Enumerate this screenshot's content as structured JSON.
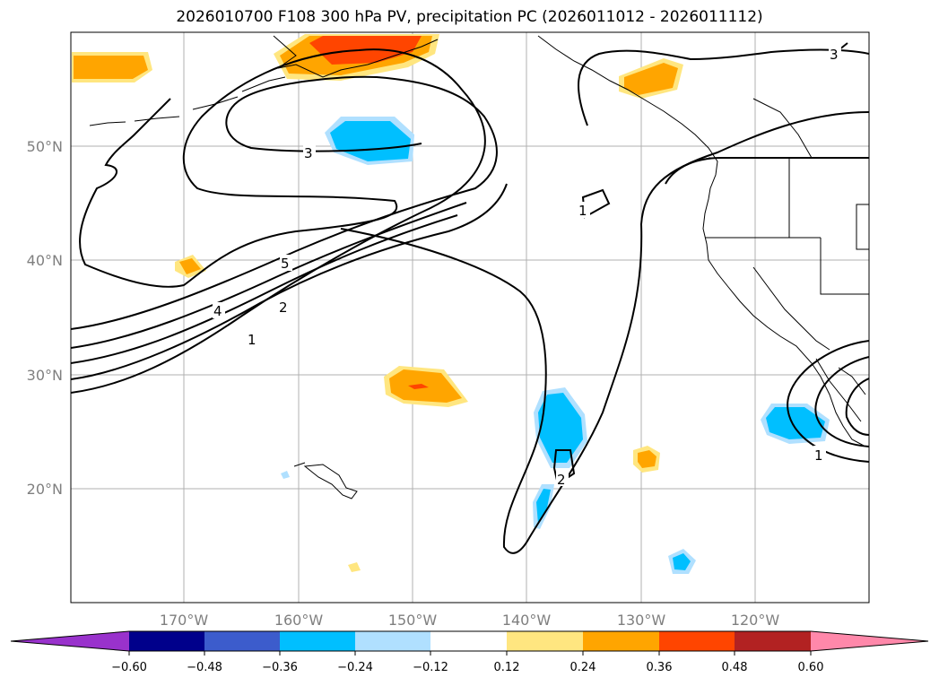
{
  "title": "2026010700 F108 300 hPa PV, precipitation PC (2026011012 - 2026011112)",
  "map": {
    "lat_labels": [
      "50°N",
      "40°N",
      "30°N",
      "20°N"
    ],
    "lon_labels": [
      "170°W",
      "160°W",
      "150°W",
      "140°W",
      "130°W",
      "120°W"
    ],
    "pv_contour_labels": [
      "3",
      "3",
      "5",
      "4",
      "2",
      "1",
      "1",
      "2",
      "1"
    ]
  },
  "colorbar": {
    "colors": [
      "#9932cc",
      "#00008b",
      "#3c5ccc",
      "#00bfff",
      "#b0e0ff",
      "#ffffff",
      "#ffe680",
      "#ffa500",
      "#ff4500",
      "#b22222",
      "#ff88aa"
    ],
    "ticks": [
      "−0.60",
      "−0.48",
      "−0.36",
      "−0.24",
      "−0.12",
      "0.12",
      "0.24",
      "0.36",
      "0.48",
      "0.60"
    ]
  }
}
